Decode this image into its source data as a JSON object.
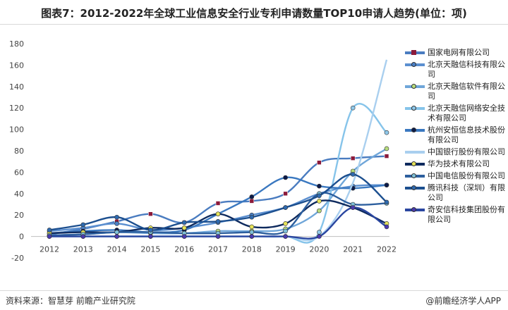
{
  "header": {
    "title": "图表7：2012-2022年全球工业信息安全行业专利申请数量TOP10申请人趋势(单位：项)"
  },
  "footer": {
    "source": "资料来源：智慧芽 前瞻产业研究院",
    "brand": "@前瞻经济学人APP"
  },
  "chart_data": {
    "type": "line",
    "x": [
      "2012",
      "2013",
      "2014",
      "2015",
      "2016",
      "2017",
      "2018",
      "2019",
      "2020",
      "2021",
      "2022"
    ],
    "ylim": [
      -20,
      180
    ],
    "yticks": [
      -20,
      0,
      20,
      40,
      60,
      80,
      100,
      120,
      140,
      160,
      180
    ],
    "series": [
      {
        "name": "国家电网有限公司",
        "color": "#4a7cc0",
        "marker": "square",
        "marker_color": "#8b1a3a",
        "values": [
          2,
          7,
          14,
          21,
          13,
          31,
          33,
          40,
          69,
          73,
          75
        ]
      },
      {
        "name": "北京天融信科技有限公司",
        "color": "#5b8fd0",
        "marker": "circle",
        "marker_color": "#4a80c8",
        "values": [
          5,
          8,
          12,
          6,
          8,
          13,
          20,
          27,
          40,
          47,
          48
        ]
      },
      {
        "name": "北京天融信软件有限公司",
        "color": "#6fa6d9",
        "marker": "circle",
        "marker_color": "#b7dd7d",
        "values": [
          1,
          2,
          4,
          3,
          3,
          5,
          5,
          7,
          24,
          61,
          82
        ]
      },
      {
        "name": "北京天融信网络安全技术有限公司",
        "color": "#86c4ea",
        "marker": "circle",
        "marker_color": "#8fc8ea",
        "values": [
          0,
          0,
          0,
          0,
          0,
          0,
          0,
          0,
          4,
          120,
          97
        ]
      },
      {
        "name": "杭州安恒信息技术股份有限公司",
        "color": "#3a78c0",
        "marker": "circle",
        "marker_color": "#0b1a4a",
        "values": [
          3,
          5,
          6,
          4,
          6,
          21,
          37,
          55,
          47,
          45,
          48
        ]
      },
      {
        "name": "中国银行股份有限公司",
        "color": "#a9cfef",
        "marker": "none",
        "marker_color": "#a9cfef",
        "values": [
          0,
          0,
          0,
          0,
          0,
          0,
          0,
          0,
          0,
          50,
          165
        ]
      },
      {
        "name": "华为技术有限公司",
        "color": "#0e2a5e",
        "marker": "circle",
        "marker_color": "#e6e45a",
        "values": [
          3,
          4,
          4,
          8,
          8,
          21,
          9,
          12,
          33,
          27,
          12
        ]
      },
      {
        "name": "中国电信股份有限公司",
        "color": "#2d5f9e",
        "marker": "circle",
        "marker_color": "#7ec0d8",
        "values": [
          1,
          2,
          4,
          4,
          3,
          3,
          4,
          5,
          40,
          30,
          31
        ]
      },
      {
        "name": "腾讯科技（深圳）有限公司",
        "color": "#1c4f8f",
        "marker": "circle",
        "marker_color": "#2e6ab0",
        "values": [
          6,
          11,
          18,
          6,
          13,
          14,
          18,
          27,
          38,
          58,
          32
        ]
      },
      {
        "name": "奇安信科技集团股份有限公司",
        "color": "#2a46a0",
        "marker": "circle",
        "marker_color": "#4a3ab0",
        "values": [
          0,
          0,
          0,
          0,
          0,
          0,
          0,
          0,
          0,
          27,
          9
        ]
      }
    ]
  }
}
